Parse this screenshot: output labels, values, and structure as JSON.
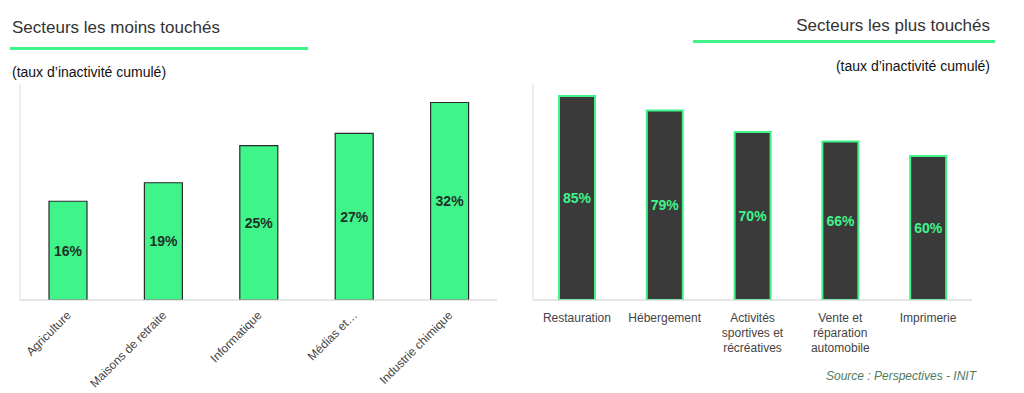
{
  "chart_data": [
    {
      "type": "bar",
      "title": "Secteurs les moins touchés",
      "subtitle": "(taux d’inactivité cumulé)",
      "categories": [
        "Agriculture",
        "Maisons de retraite",
        "Informatique",
        "Médias et…",
        "Industrie chimique"
      ],
      "values": [
        16,
        19,
        25,
        27,
        32
      ],
      "value_labels": [
        "16%",
        "19%",
        "25%",
        "27%",
        "32%"
      ],
      "color": "#3ff58a",
      "ylim": [
        0,
        35
      ],
      "data_labels": true,
      "tick_labels": "x",
      "grid": false
    },
    {
      "type": "bar",
      "title": "Secteurs les plus touchés",
      "subtitle": "(taux d’inactivité cumulé)",
      "categories": [
        "Restauration",
        "Hébergement",
        "Activités sportives et récréatives",
        "Vente et réparation automobile",
        "Imprimerie"
      ],
      "values": [
        85,
        79,
        70,
        66,
        60
      ],
      "value_labels": [
        "85%",
        "79%",
        "70%",
        "66%",
        "60%"
      ],
      "color": "#3a3a3a",
      "ylim": [
        0,
        90
      ],
      "data_labels": true,
      "tick_labels": "x",
      "grid": false,
      "annotation": "Source : Perspectives - INIT"
    }
  ]
}
